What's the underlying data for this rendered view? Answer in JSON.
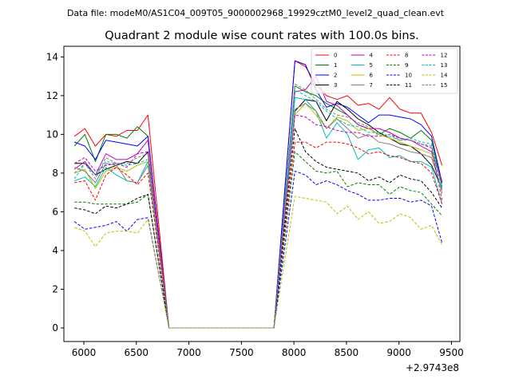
{
  "figure": {
    "suptitle": "Data file: modeM0/AS1C04_009T05_9000002968_19929cztM0_level2_quad_clean.evt"
  },
  "chart_data": {
    "type": "line",
    "title": "Quadrant 2 module wise count rates with 100.0s bins.",
    "xlabel": "",
    "ylabel": "",
    "x_offset_label": "+2.9743e8",
    "xlim": [
      5810,
      9580
    ],
    "ylim": [
      -0.7,
      14.55
    ],
    "xticks": [
      6000,
      6500,
      7000,
      7500,
      8000,
      8500,
      9000,
      9500
    ],
    "yticks": [
      0,
      2,
      4,
      6,
      8,
      10,
      12,
      14
    ],
    "x": [
      5910,
      6010,
      6110,
      6210,
      6310,
      6410,
      6510,
      6610,
      6810,
      6910,
      7010,
      7110,
      7210,
      7310,
      7410,
      7510,
      7610,
      7710,
      7810,
      8010,
      8110,
      8210,
      8310,
      8410,
      8510,
      8610,
      8710,
      8810,
      8910,
      9010,
      9110,
      9210,
      9310,
      9410
    ],
    "legend_location": "upper right",
    "series": [
      {
        "name": "0",
        "color": "#ff0000",
        "dash": "solid",
        "values": [
          9.9,
          10.3,
          9.4,
          10.0,
          9.9,
          10.2,
          10.2,
          11.0,
          0.0,
          0.0,
          0.0,
          0.0,
          0.0,
          0.0,
          0.0,
          0.0,
          0.0,
          0.0,
          0.0,
          13.8,
          13.5,
          12.6,
          12.0,
          11.8,
          12.0,
          11.5,
          11.6,
          11.3,
          11.9,
          11.3,
          11.1,
          11.1,
          10.1,
          8.4
        ]
      },
      {
        "name": "1",
        "color": "#008000",
        "dash": "solid",
        "values": [
          9.4,
          10.0,
          8.6,
          10.0,
          10.0,
          9.8,
          10.4,
          9.9,
          0.0,
          0.0,
          0.0,
          0.0,
          0.0,
          0.0,
          0.0,
          0.0,
          0.0,
          0.0,
          0.0,
          12.5,
          12.2,
          12.0,
          11.6,
          11.3,
          11.0,
          10.5,
          10.3,
          10.0,
          10.3,
          10.1,
          9.8,
          10.2,
          9.7,
          7.3
        ]
      },
      {
        "name": "2",
        "color": "#0000ff",
        "dash": "solid",
        "values": [
          9.6,
          9.4,
          8.7,
          9.7,
          9.6,
          9.5,
          9.4,
          9.9,
          0.0,
          0.0,
          0.0,
          0.0,
          0.0,
          0.0,
          0.0,
          0.0,
          0.0,
          0.0,
          0.0,
          13.8,
          13.6,
          12.3,
          11.4,
          11.6,
          11.4,
          11.0,
          10.6,
          11.0,
          11.0,
          10.9,
          10.8,
          10.5,
          9.9,
          7.5
        ]
      },
      {
        "name": "3",
        "color": "#000000",
        "dash": "solid",
        "values": [
          8.5,
          8.5,
          7.9,
          8.2,
          8.4,
          8.6,
          8.5,
          9.1,
          0.0,
          0.0,
          0.0,
          0.0,
          0.0,
          0.0,
          0.0,
          0.0,
          0.0,
          0.0,
          0.0,
          11.2,
          11.8,
          11.7,
          10.7,
          11.7,
          11.3,
          10.8,
          10.5,
          10.1,
          9.8,
          9.5,
          9.4,
          9.0,
          8.4,
          7.2
        ]
      },
      {
        "name": "4",
        "color": "#bf00bf",
        "dash": "solid",
        "values": [
          8.2,
          8.6,
          7.9,
          9.0,
          8.7,
          8.7,
          9.0,
          9.7,
          0.0,
          0.0,
          0.0,
          0.0,
          0.0,
          0.0,
          0.0,
          0.0,
          0.0,
          0.0,
          0.0,
          12.2,
          12.3,
          13.0,
          11.7,
          11.5,
          11.0,
          10.5,
          10.3,
          10.3,
          10.1,
          9.8,
          9.7,
          9.4,
          9.1,
          7.6
        ]
      },
      {
        "name": "5",
        "color": "#00bfbf",
        "dash": "solid",
        "values": [
          7.6,
          7.8,
          7.3,
          8.3,
          7.9,
          7.6,
          7.5,
          8.6,
          0.0,
          0.0,
          0.0,
          0.0,
          0.0,
          0.0,
          0.0,
          0.0,
          0.0,
          0.0,
          0.0,
          11.9,
          11.8,
          11.2,
          9.8,
          10.6,
          10.0,
          8.7,
          9.2,
          9.3,
          8.8,
          8.9,
          8.6,
          8.6,
          8.3,
          6.4
        ]
      },
      {
        "name": "6",
        "color": "#bfbf00",
        "dash": "solid",
        "values": [
          8.0,
          8.2,
          7.2,
          8.1,
          8.3,
          8.1,
          8.4,
          8.6,
          0.0,
          0.0,
          0.0,
          0.0,
          0.0,
          0.0,
          0.0,
          0.0,
          0.0,
          0.0,
          0.0,
          11.0,
          11.6,
          11.0,
          10.3,
          10.9,
          10.7,
          10.2,
          10.3,
          10.0,
          9.8,
          9.6,
          9.4,
          9.2,
          9.0,
          7.0
        ]
      },
      {
        "name": "7",
        "color": "#808080",
        "dash": "solid",
        "values": [
          8.3,
          8.1,
          7.5,
          8.5,
          8.4,
          7.6,
          7.5,
          8.4,
          0.0,
          0.0,
          0.0,
          0.0,
          0.0,
          0.0,
          0.0,
          0.0,
          0.0,
          0.0,
          0.0,
          11.3,
          11.6,
          11.2,
          10.3,
          10.8,
          10.3,
          9.8,
          10.0,
          9.6,
          9.5,
          9.3,
          9.1,
          9.0,
          8.8,
          7.1
        ]
      },
      {
        "name": "8",
        "color": "#ff0000",
        "dash": "dashed",
        "values": [
          7.5,
          7.6,
          6.6,
          7.9,
          8.3,
          7.9,
          7.4,
          8.0,
          0.0,
          0.0,
          0.0,
          0.0,
          0.0,
          0.0,
          0.0,
          0.0,
          0.0,
          0.0,
          0.0,
          9.6,
          9.6,
          9.3,
          9.6,
          9.6,
          9.5,
          9.3,
          9.0,
          9.1,
          8.9,
          8.8,
          8.6,
          8.5,
          8.0,
          6.4
        ]
      },
      {
        "name": "9",
        "color": "#008000",
        "dash": "dashed",
        "values": [
          6.5,
          6.5,
          6.4,
          6.4,
          6.4,
          6.4,
          6.5,
          6.9,
          0.0,
          0.0,
          0.0,
          0.0,
          0.0,
          0.0,
          0.0,
          0.0,
          0.0,
          0.0,
          0.0,
          9.1,
          8.6,
          8.1,
          8.0,
          8.1,
          7.3,
          7.5,
          7.4,
          7.4,
          6.9,
          7.3,
          7.1,
          7.0,
          6.4,
          5.8
        ]
      },
      {
        "name": "10",
        "color": "#0000ff",
        "dash": "dashed",
        "values": [
          5.5,
          5.1,
          5.2,
          5.3,
          5.5,
          5.0,
          5.6,
          5.7,
          0.0,
          0.0,
          0.0,
          0.0,
          0.0,
          0.0,
          0.0,
          0.0,
          0.0,
          0.0,
          0.0,
          8.1,
          7.9,
          7.4,
          7.6,
          7.4,
          7.1,
          6.9,
          6.6,
          6.6,
          6.7,
          6.7,
          6.5,
          6.6,
          6.3,
          4.4
        ]
      },
      {
        "name": "11",
        "color": "#000000",
        "dash": "dashed",
        "values": [
          6.2,
          6.1,
          5.9,
          6.3,
          6.2,
          6.4,
          6.7,
          6.9,
          0.0,
          0.0,
          0.0,
          0.0,
          0.0,
          0.0,
          0.0,
          0.0,
          0.0,
          0.0,
          0.0,
          10.3,
          9.1,
          8.6,
          8.3,
          8.2,
          8.1,
          8.0,
          7.6,
          7.8,
          7.5,
          7.9,
          7.7,
          7.6,
          7.0,
          6.2
        ]
      },
      {
        "name": "12",
        "color": "#bf00bf",
        "dash": "dashed",
        "values": [
          8.5,
          8.8,
          8.1,
          8.4,
          8.5,
          8.3,
          9.0,
          9.1,
          0.0,
          0.0,
          0.0,
          0.0,
          0.0,
          0.0,
          0.0,
          0.0,
          0.0,
          0.0,
          0.0,
          11.0,
          10.9,
          10.5,
          10.4,
          10.2,
          10.1,
          10.1,
          9.9,
          9.9,
          10.0,
          9.8,
          9.7,
          9.5,
          9.3,
          6.6
        ]
      },
      {
        "name": "13",
        "color": "#00bfbf",
        "dash": "dashed",
        "values": [
          7.7,
          8.5,
          7.9,
          8.6,
          8.5,
          8.4,
          8.5,
          8.7,
          0.0,
          0.0,
          0.0,
          0.0,
          0.0,
          0.0,
          0.0,
          0.0,
          0.0,
          0.0,
          0.0,
          12.3,
          12.0,
          11.7,
          11.2,
          10.8,
          10.5,
          10.4,
          10.1,
          10.1,
          9.9,
          9.7,
          9.8,
          9.6,
          9.5,
          7.2
        ]
      },
      {
        "name": "14",
        "color": "#bfbf00",
        "dash": "dashed",
        "values": [
          5.2,
          5.0,
          4.2,
          4.9,
          5.0,
          5.0,
          4.9,
          5.6,
          0.0,
          0.0,
          0.0,
          0.0,
          0.0,
          0.0,
          0.0,
          0.0,
          0.0,
          0.0,
          0.0,
          6.8,
          6.7,
          6.6,
          6.5,
          5.9,
          6.3,
          5.6,
          6.0,
          5.4,
          5.5,
          5.9,
          5.7,
          5.1,
          5.3,
          4.3
        ]
      },
      {
        "name": "15",
        "color": "#808080",
        "dash": "dashed",
        "values": [
          8.0,
          8.5,
          7.7,
          8.8,
          8.5,
          8.5,
          8.8,
          9.0,
          0.0,
          0.0,
          0.0,
          0.0,
          0.0,
          0.0,
          0.0,
          0.0,
          0.0,
          0.0,
          0.0,
          12.6,
          12.3,
          11.8,
          11.3,
          11.0,
          10.9,
          10.6,
          10.4,
          9.9,
          10.0,
          9.7,
          9.7,
          9.5,
          9.4,
          6.9
        ]
      }
    ]
  }
}
